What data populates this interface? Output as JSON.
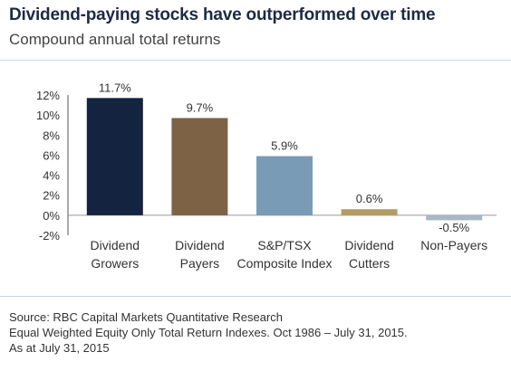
{
  "title": "Dividend-paying stocks have outperformed over time",
  "subtitle": "Compound annual total returns",
  "chart_data": {
    "type": "bar",
    "categories": [
      [
        "Dividend",
        "Growers"
      ],
      [
        "Dividend",
        "Payers"
      ],
      [
        "S&P/TSX",
        "Composite Index"
      ],
      [
        "Dividend",
        "Cutters"
      ],
      [
        "Non-Payers"
      ]
    ],
    "values": [
      11.7,
      9.7,
      5.9,
      0.6,
      -0.5
    ],
    "data_labels": [
      "11.7%",
      "9.7%",
      "5.9%",
      "0.6%",
      "-0.5%"
    ],
    "colors": [
      "#14233f",
      "#7d6245",
      "#7a9bb5",
      "#b39c62",
      "#a9b7c6"
    ],
    "yticks": [
      12,
      10,
      8,
      6,
      4,
      2,
      0,
      -2
    ],
    "ytick_labels": [
      "12%",
      "10%",
      "8%",
      "6%",
      "4%",
      "2%",
      "0%",
      "-2%"
    ],
    "ylim": [
      -2,
      12
    ],
    "grid": false
  },
  "footer": {
    "source": "Source: RBC Capital Markets Quantitative Research",
    "note": "Equal Weighted Equity Only Total Return Indexes.  Oct 1986 – July 31, 2015.",
    "asof": "As at July 31, 2015"
  }
}
